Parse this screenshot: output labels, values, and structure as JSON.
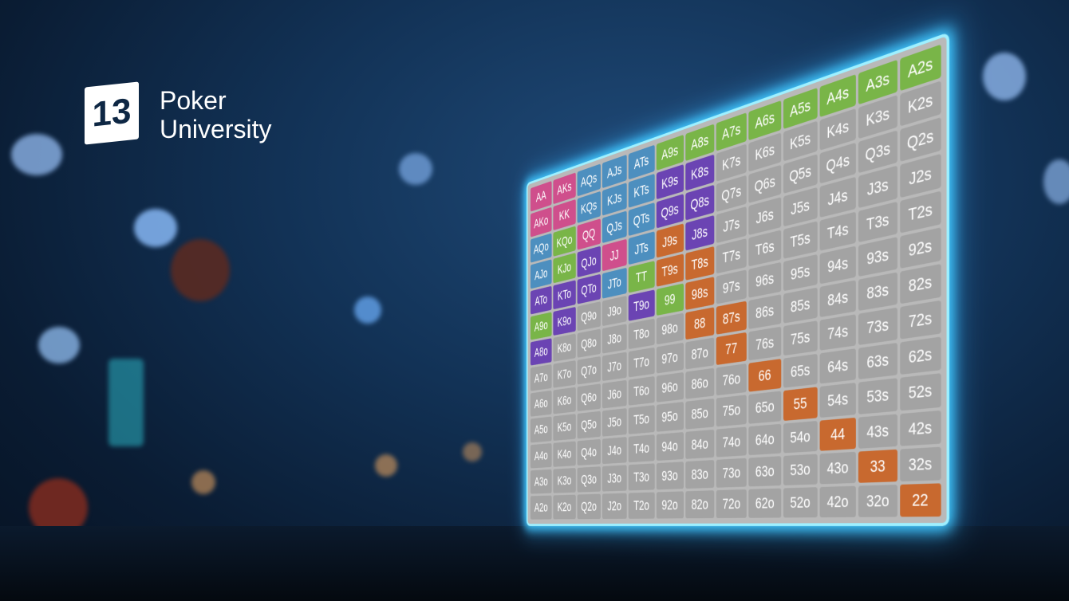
{
  "logo": {
    "mark": "13",
    "line1": "Poker",
    "line2": "University"
  },
  "grid": {
    "cells": [
      [
        "AA",
        "AKs",
        "AQs",
        "AJs",
        "ATs",
        "A9s",
        "A8s",
        "A7s",
        "A6s",
        "A5s",
        "A4s",
        "A3s",
        "A2s"
      ],
      [
        "AKo",
        "KK",
        "KQs",
        "KJs",
        "KTs",
        "K9s",
        "K8s",
        "K7s",
        "K6s",
        "K5s",
        "K4s",
        "K3s",
        "K2s"
      ],
      [
        "AQo",
        "KQo",
        "QQ",
        "QJs",
        "QTs",
        "Q9s",
        "Q8s",
        "Q7s",
        "Q6s",
        "Q5s",
        "Q4s",
        "Q3s",
        "Q2s"
      ],
      [
        "AJo",
        "KJo",
        "QJo",
        "JJ",
        "JTs",
        "J9s",
        "J8s",
        "J7s",
        "J6s",
        "J5s",
        "J4s",
        "J3s",
        "J2s"
      ],
      [
        "ATo",
        "KTo",
        "QTo",
        "JTo",
        "TT",
        "T9s",
        "T8s",
        "T7s",
        "T6s",
        "T5s",
        "T4s",
        "T3s",
        "T2s"
      ],
      [
        "A9o",
        "K9o",
        "Q9o",
        "J9o",
        "T9o",
        "99",
        "98s",
        "97s",
        "96s",
        "95s",
        "94s",
        "93s",
        "92s"
      ],
      [
        "A8o",
        "K8o",
        "Q8o",
        "J8o",
        "T8o",
        "98o",
        "88",
        "87s",
        "86s",
        "85s",
        "84s",
        "83s",
        "82s"
      ],
      [
        "A7o",
        "K7o",
        "Q7o",
        "J7o",
        "T7o",
        "97o",
        "87o",
        "77",
        "76s",
        "75s",
        "74s",
        "73s",
        "72s"
      ],
      [
        "A6o",
        "K6o",
        "Q6o",
        "J6o",
        "T6o",
        "96o",
        "86o",
        "76o",
        "66",
        "65s",
        "64s",
        "63s",
        "62s"
      ],
      [
        "A5o",
        "K5o",
        "Q5o",
        "J5o",
        "T5o",
        "95o",
        "85o",
        "75o",
        "65o",
        "55",
        "54s",
        "53s",
        "52s"
      ],
      [
        "A4o",
        "K4o",
        "Q4o",
        "J4o",
        "T4o",
        "94o",
        "84o",
        "74o",
        "64o",
        "54o",
        "44",
        "43s",
        "42s"
      ],
      [
        "A3o",
        "K3o",
        "Q3o",
        "J3o",
        "T3o",
        "93o",
        "83o",
        "73o",
        "63o",
        "53o",
        "43o",
        "33",
        "32s"
      ],
      [
        "A2o",
        "K2o",
        "Q2o",
        "J2o",
        "T2o",
        "92o",
        "82o",
        "72o",
        "62o",
        "52o",
        "42o",
        "32o",
        "22"
      ]
    ],
    "colors": [
      [
        "#cf4f8c",
        "#cf4f8c",
        "#4d8fbf",
        "#4d8fbf",
        "#4d8fbf",
        "#79b548",
        "#79b548",
        "#79b548",
        "#79b548",
        "#79b548",
        "#79b548",
        "#79b548",
        "#79b548"
      ],
      [
        "#cf4f8c",
        "#cf4f8c",
        "#4d8fbf",
        "#4d8fbf",
        "#4d8fbf",
        "#6b44b3",
        "#6b44b3",
        "#a3a3a3",
        "#a3a3a3",
        "#a3a3a3",
        "#a3a3a3",
        "#a3a3a3",
        "#a3a3a3"
      ],
      [
        "#4d8fbf",
        "#79b548",
        "#cf4f8c",
        "#4d8fbf",
        "#4d8fbf",
        "#6b44b3",
        "#6b44b3",
        "#a3a3a3",
        "#a3a3a3",
        "#a3a3a3",
        "#a3a3a3",
        "#a3a3a3",
        "#a3a3a3"
      ],
      [
        "#4d8fbf",
        "#79b548",
        "#6b44b3",
        "#cf4f8c",
        "#4d8fbf",
        "#c8692f",
        "#6b44b3",
        "#a3a3a3",
        "#a3a3a3",
        "#a3a3a3",
        "#a3a3a3",
        "#a3a3a3",
        "#a3a3a3"
      ],
      [
        "#6b44b3",
        "#6b44b3",
        "#6b44b3",
        "#4d8fbf",
        "#79b548",
        "#c8692f",
        "#c8692f",
        "#a3a3a3",
        "#a3a3a3",
        "#a3a3a3",
        "#a3a3a3",
        "#a3a3a3",
        "#a3a3a3"
      ],
      [
        "#79b548",
        "#6b44b3",
        "#a3a3a3",
        "#a3a3a3",
        "#6b44b3",
        "#79b548",
        "#c8692f",
        "#a3a3a3",
        "#a3a3a3",
        "#a3a3a3",
        "#a3a3a3",
        "#a3a3a3",
        "#a3a3a3"
      ],
      [
        "#6b44b3",
        "#a3a3a3",
        "#a3a3a3",
        "#a3a3a3",
        "#a3a3a3",
        "#a3a3a3",
        "#c8692f",
        "#c8692f",
        "#a3a3a3",
        "#a3a3a3",
        "#a3a3a3",
        "#a3a3a3",
        "#a3a3a3"
      ],
      [
        "#a3a3a3",
        "#a3a3a3",
        "#a3a3a3",
        "#a3a3a3",
        "#a3a3a3",
        "#a3a3a3",
        "#a3a3a3",
        "#c8692f",
        "#a3a3a3",
        "#a3a3a3",
        "#a3a3a3",
        "#a3a3a3",
        "#a3a3a3"
      ],
      [
        "#a3a3a3",
        "#a3a3a3",
        "#a3a3a3",
        "#a3a3a3",
        "#a3a3a3",
        "#a3a3a3",
        "#a3a3a3",
        "#a3a3a3",
        "#c8692f",
        "#a3a3a3",
        "#a3a3a3",
        "#a3a3a3",
        "#a3a3a3"
      ],
      [
        "#a3a3a3",
        "#a3a3a3",
        "#a3a3a3",
        "#a3a3a3",
        "#a3a3a3",
        "#a3a3a3",
        "#a3a3a3",
        "#a3a3a3",
        "#a3a3a3",
        "#c8692f",
        "#a3a3a3",
        "#a3a3a3",
        "#a3a3a3"
      ],
      [
        "#a3a3a3",
        "#a3a3a3",
        "#a3a3a3",
        "#a3a3a3",
        "#a3a3a3",
        "#a3a3a3",
        "#a3a3a3",
        "#a3a3a3",
        "#a3a3a3",
        "#a3a3a3",
        "#c8692f",
        "#a3a3a3",
        "#a3a3a3"
      ],
      [
        "#a3a3a3",
        "#a3a3a3",
        "#a3a3a3",
        "#a3a3a3",
        "#a3a3a3",
        "#a3a3a3",
        "#a3a3a3",
        "#a3a3a3",
        "#a3a3a3",
        "#a3a3a3",
        "#a3a3a3",
        "#c8692f",
        "#a3a3a3"
      ],
      [
        "#a3a3a3",
        "#a3a3a3",
        "#a3a3a3",
        "#a3a3a3",
        "#a3a3a3",
        "#a3a3a3",
        "#a3a3a3",
        "#a3a3a3",
        "#a3a3a3",
        "#a3a3a3",
        "#a3a3a3",
        "#a3a3a3",
        "#c8692f"
      ]
    ]
  }
}
